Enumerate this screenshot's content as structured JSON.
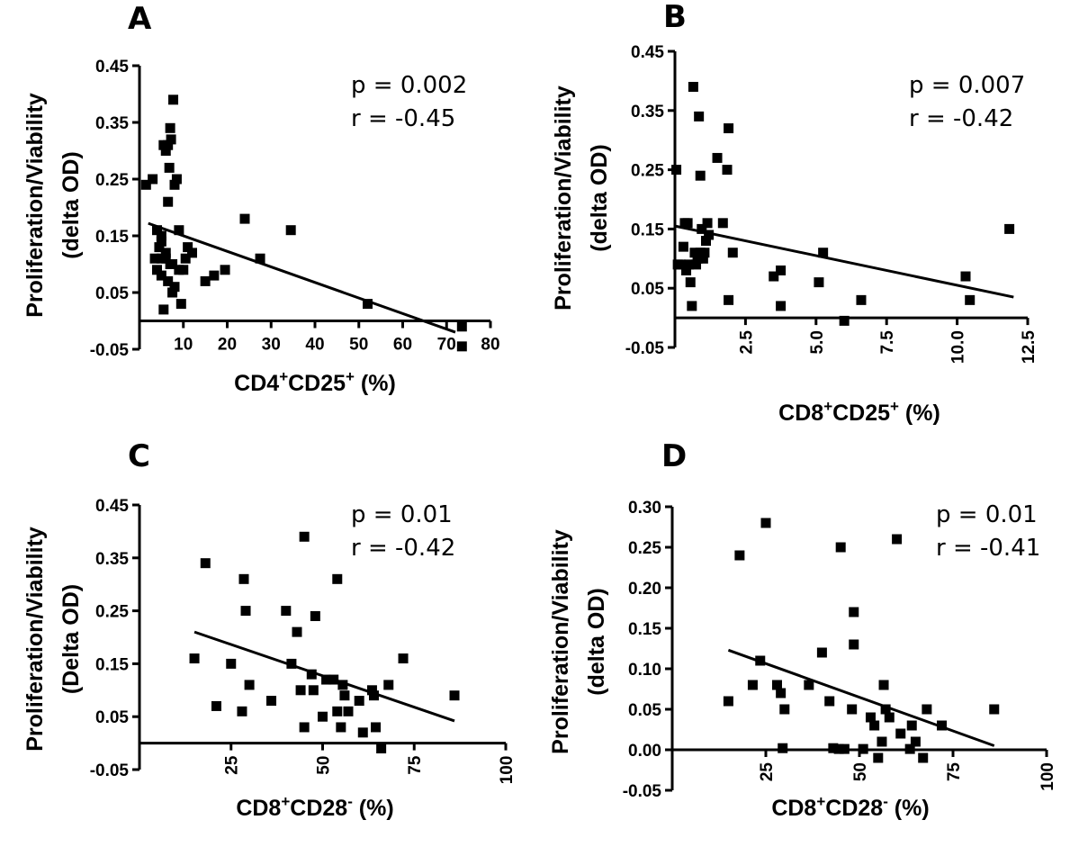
{
  "chart_data": [
    {
      "type": "scatter",
      "panel": "A",
      "ylabel": "Proliferation/Viability",
      "ylabel2": "(delta OD)",
      "xlabel_main": "CD4",
      "xlabel_sup1": "+",
      "xlabel_mid": "CD25",
      "xlabel_sup2": "+",
      "xlabel_tail": " (%)",
      "xlim": [
        0,
        80
      ],
      "ylim": [
        -0.05,
        0.45
      ],
      "xticks": [
        "10",
        "20",
        "30",
        "40",
        "50",
        "60",
        "70",
        "80"
      ],
      "yticks": [
        "-0.05",
        "0.05",
        "0.15",
        "0.25",
        "0.35",
        "0.45"
      ],
      "p_text": "p = 0.002",
      "r_text": "r = -0.45",
      "regression": {
        "x": [
          2,
          72
        ],
        "y": [
          0.172,
          -0.02
        ]
      },
      "points": [
        [
          1.5,
          0.24
        ],
        [
          3,
          0.25
        ],
        [
          3.5,
          0.11
        ],
        [
          4,
          0.16
        ],
        [
          4,
          0.09
        ],
        [
          4.5,
          0.13
        ],
        [
          5,
          0.15
        ],
        [
          5,
          0.14
        ],
        [
          5,
          0.11
        ],
        [
          5,
          0.08
        ],
        [
          5.5,
          0.31
        ],
        [
          5.5,
          0.02
        ],
        [
          6,
          0.3
        ],
        [
          6,
          0.11
        ],
        [
          6,
          0.12
        ],
        [
          6.5,
          0.31
        ],
        [
          6.5,
          0.21
        ],
        [
          6.5,
          0.07
        ],
        [
          6.8,
          0.27
        ],
        [
          7,
          0.34
        ],
        [
          7,
          0.1
        ],
        [
          7.2,
          0.32
        ],
        [
          7.5,
          0.1
        ],
        [
          7.5,
          0.05
        ],
        [
          7.7,
          0.39
        ],
        [
          8,
          0.24
        ],
        [
          8,
          0.06
        ],
        [
          8.5,
          0.25
        ],
        [
          9,
          0.16
        ],
        [
          9,
          0.09
        ],
        [
          9.5,
          0.03
        ],
        [
          10,
          0.09
        ],
        [
          10.5,
          0.11
        ],
        [
          11,
          0.13
        ],
        [
          12,
          0.12
        ],
        [
          15,
          0.07
        ],
        [
          17,
          0.08
        ],
        [
          19.5,
          0.09
        ],
        [
          24,
          0.18
        ],
        [
          27.5,
          0.11
        ],
        [
          34.5,
          0.16
        ],
        [
          52,
          0.03
        ],
        [
          73.5,
          -0.01
        ],
        [
          73.5,
          -0.045
        ]
      ]
    },
    {
      "type": "scatter",
      "panel": "B",
      "ylabel": "Proliferation/Viability",
      "ylabel2": "(delta OD)",
      "xlabel_main": "CD8",
      "xlabel_sup1": "+",
      "xlabel_mid": "CD25",
      "xlabel_sup2": "+",
      "xlabel_tail": " (%)",
      "xlim": [
        0,
        12.5
      ],
      "ylim": [
        -0.05,
        0.45
      ],
      "xticks": [
        "2.5",
        "5.0",
        "7.5",
        "10.0",
        "12.5"
      ],
      "yticks": [
        "-0.05",
        "0.05",
        "0.15",
        "0.25",
        "0.35",
        "0.45"
      ],
      "p_text": "p = 0.007",
      "r_text": "r = -0.42",
      "regression": {
        "x": [
          0,
          12
        ],
        "y": [
          0.155,
          0.035
        ]
      },
      "points": [
        [
          0.05,
          0.25
        ],
        [
          0.1,
          0.09
        ],
        [
          0.2,
          0.09
        ],
        [
          0.3,
          0.12
        ],
        [
          0.35,
          0.16
        ],
        [
          0.4,
          0.08
        ],
        [
          0.45,
          0.16
        ],
        [
          0.5,
          0.09
        ],
        [
          0.55,
          0.06
        ],
        [
          0.6,
          0.02
        ],
        [
          0.65,
          0.39
        ],
        [
          0.7,
          0.11
        ],
        [
          0.75,
          0.09
        ],
        [
          0.8,
          0.1
        ],
        [
          0.85,
          0.34
        ],
        [
          0.9,
          0.24
        ],
        [
          0.9,
          0.11
        ],
        [
          0.95,
          0.15
        ],
        [
          1.0,
          0.1
        ],
        [
          1.05,
          0.11
        ],
        [
          1.1,
          0.13
        ],
        [
          1.15,
          0.16
        ],
        [
          1.2,
          0.14
        ],
        [
          1.5,
          0.27
        ],
        [
          1.7,
          0.16
        ],
        [
          1.85,
          0.25
        ],
        [
          1.9,
          0.32
        ],
        [
          1.9,
          0.03
        ],
        [
          2.05,
          0.11
        ],
        [
          3.5,
          0.07
        ],
        [
          3.75,
          0.08
        ],
        [
          3.75,
          0.02
        ],
        [
          5.25,
          0.11
        ],
        [
          5.1,
          0.06
        ],
        [
          6.0,
          -0.005
        ],
        [
          6.6,
          0.03
        ],
        [
          10.3,
          0.07
        ],
        [
          10.45,
          0.03
        ],
        [
          11.85,
          0.15
        ]
      ]
    },
    {
      "type": "scatter",
      "panel": "C",
      "ylabel": "Proliferation/Viability",
      "ylabel2": "(Delta OD)",
      "xlabel_main": "CD8",
      "xlabel_sup1": "+",
      "xlabel_mid": "CD28",
      "xlabel_sup2": "-",
      "xlabel_tail": " (%)",
      "xlim": [
        0,
        100
      ],
      "ylim": [
        -0.05,
        0.45
      ],
      "xticks": [
        "25",
        "50",
        "75",
        "100"
      ],
      "yticks": [
        "-0.05",
        "0.05",
        "0.15",
        "0.25",
        "0.35",
        "0.45"
      ],
      "p_text": "p = 0.01",
      "r_text": "r = -0.42",
      "regression": {
        "x": [
          15,
          86
        ],
        "y": [
          0.21,
          0.042
        ]
      },
      "points": [
        [
          15,
          0.16
        ],
        [
          18,
          0.34
        ],
        [
          21,
          0.07
        ],
        [
          25,
          0.15
        ],
        [
          28,
          0.06
        ],
        [
          28.5,
          0.31
        ],
        [
          29,
          0.25
        ],
        [
          30,
          0.11
        ],
        [
          36,
          0.08
        ],
        [
          40,
          0.25
        ],
        [
          41.5,
          0.15
        ],
        [
          43,
          0.21
        ],
        [
          44,
          0.1
        ],
        [
          45,
          0.39
        ],
        [
          45,
          0.03
        ],
        [
          47,
          0.13
        ],
        [
          47.5,
          0.1
        ],
        [
          48,
          0.24
        ],
        [
          50,
          0.05
        ],
        [
          51,
          0.12
        ],
        [
          53,
          0.12
        ],
        [
          54,
          0.31
        ],
        [
          54,
          0.06
        ],
        [
          55,
          0.03
        ],
        [
          55.5,
          0.11
        ],
        [
          56,
          0.09
        ],
        [
          57,
          0.06
        ],
        [
          60,
          0.08
        ],
        [
          61,
          0.02
        ],
        [
          63.5,
          0.1
        ],
        [
          64,
          0.09
        ],
        [
          64.5,
          0.03
        ],
        [
          66,
          -0.01
        ],
        [
          68,
          0.11
        ],
        [
          72,
          0.16
        ],
        [
          86,
          0.09
        ]
      ]
    },
    {
      "type": "scatter",
      "panel": "D",
      "ylabel": "Proliferation/Viability",
      "ylabel2": "(delta OD)",
      "xlabel_main": "CD8",
      "xlabel_sup1": "+",
      "xlabel_mid": "CD28",
      "xlabel_sup2": "-",
      "xlabel_tail": " (%)",
      "xlim": [
        0,
        100
      ],
      "ylim": [
        -0.05,
        0.3
      ],
      "xticks": [
        "25",
        "50",
        "75",
        "100"
      ],
      "yticks": [
        "-0.05",
        "0.00",
        "0.05",
        "0.10",
        "0.15",
        "0.20",
        "0.25",
        "0.30"
      ],
      "p_text": "p = 0.01",
      "r_text": "r = -0.41",
      "regression": {
        "x": [
          15,
          86
        ],
        "y": [
          0.123,
          0.005
        ]
      },
      "points": [
        [
          15,
          0.06
        ],
        [
          18,
          0.24
        ],
        [
          21.5,
          0.08
        ],
        [
          23.5,
          0.11
        ],
        [
          25,
          0.28
        ],
        [
          28,
          0.08
        ],
        [
          29,
          0.07
        ],
        [
          29.5,
          0.002
        ],
        [
          30,
          0.05
        ],
        [
          36.5,
          0.08
        ],
        [
          40,
          0.12
        ],
        [
          42,
          0.06
        ],
        [
          43,
          0.002
        ],
        [
          44.5,
          0.001
        ],
        [
          45,
          0.25
        ],
        [
          46,
          0.001
        ],
        [
          48,
          0.05
        ],
        [
          48.5,
          0.17
        ],
        [
          48.5,
          0.13
        ],
        [
          51,
          0.001
        ],
        [
          53,
          0.04
        ],
        [
          54,
          0.03
        ],
        [
          55,
          -0.01
        ],
        [
          56,
          0.01
        ],
        [
          56.5,
          0.08
        ],
        [
          57,
          0.05
        ],
        [
          58,
          0.04
        ],
        [
          60,
          0.26
        ],
        [
          61,
          0.02
        ],
        [
          63.5,
          0.001
        ],
        [
          64,
          0.03
        ],
        [
          65,
          0.01
        ],
        [
          67,
          -0.01
        ],
        [
          68,
          0.05
        ],
        [
          72,
          0.03
        ],
        [
          86,
          0.05
        ]
      ]
    }
  ],
  "colors": {
    "ink": "#000000",
    "background": "#ffffff"
  }
}
